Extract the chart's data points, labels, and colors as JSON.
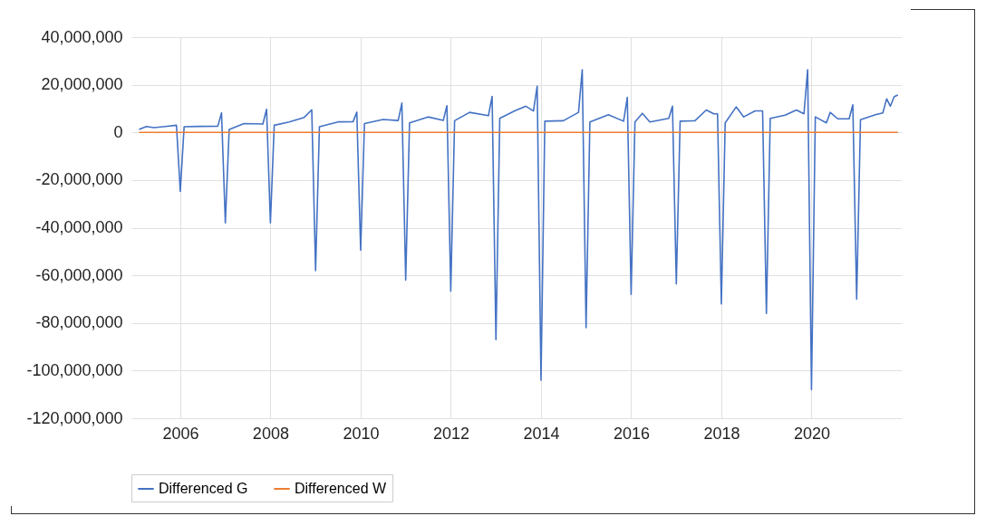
{
  "chart_data": {
    "type": "line",
    "xlim": [
      "2004-12",
      "2022-01"
    ],
    "xticks": [
      {
        "value": "2006",
        "label": "2006"
      },
      {
        "value": "2008",
        "label": "2008"
      },
      {
        "value": "2010",
        "label": "2010"
      },
      {
        "value": "2012",
        "label": "2012"
      },
      {
        "value": "2014",
        "label": "2014"
      },
      {
        "value": "2016",
        "label": "2016"
      },
      {
        "value": "2018",
        "label": "2018"
      },
      {
        "value": "2020",
        "label": "2020"
      }
    ],
    "ylim": [
      -120000000,
      40000000
    ],
    "yticks": [
      {
        "value": -120000000,
        "label": "-120,000,000"
      },
      {
        "value": -100000000,
        "label": "-100,000,000"
      },
      {
        "value": -80000000,
        "label": "-80,000,000"
      },
      {
        "value": -60000000,
        "label": "-60,000,000"
      },
      {
        "value": -40000000,
        "label": "-40,000,000"
      },
      {
        "value": -20000000,
        "label": "-20,000,000"
      },
      {
        "value": 0,
        "label": "0"
      },
      {
        "value": 20000000,
        "label": "20,000,000"
      },
      {
        "value": 40000000,
        "label": "40,000,000"
      }
    ],
    "grid": true,
    "legend": "bottom",
    "marker": "none",
    "line_style": "solid",
    "series": [
      {
        "name": "Differenced G",
        "color": "#4472c4",
        "x": [
          "2005-02",
          "2005-04",
          "2005-06",
          "2005-09",
          "2005-12",
          "2006-01",
          "2006-02",
          "2006-06",
          "2006-11",
          "2006-12",
          "2007-01",
          "2007-02",
          "2007-06",
          "2007-11",
          "2007-12",
          "2008-01",
          "2008-02",
          "2008-06",
          "2008-10",
          "2008-12",
          "2009-01",
          "2009-02",
          "2009-07",
          "2009-11",
          "2009-12",
          "2010-01",
          "2010-02",
          "2010-07",
          "2010-11",
          "2010-12",
          "2011-01",
          "2011-02",
          "2011-07",
          "2011-11",
          "2011-12",
          "2012-01",
          "2012-02",
          "2012-06",
          "2012-11",
          "2012-12",
          "2013-01",
          "2013-02",
          "2013-06",
          "2013-09",
          "2013-11",
          "2013-12",
          "2014-01",
          "2014-02",
          "2014-07",
          "2014-11",
          "2014-12",
          "2015-01",
          "2015-02",
          "2015-07",
          "2015-11",
          "2015-12",
          "2016-01",
          "2016-02",
          "2016-04",
          "2016-06",
          "2016-11",
          "2016-12",
          "2017-01",
          "2017-02",
          "2017-06",
          "2017-09",
          "2017-11",
          "2017-12",
          "2018-01",
          "2018-02",
          "2018-05",
          "2018-07",
          "2018-10",
          "2018-12",
          "2019-01",
          "2019-02",
          "2019-06",
          "2019-09",
          "2019-11",
          "2019-12",
          "2020-01",
          "2020-02",
          "2020-05",
          "2020-06",
          "2020-08",
          "2020-11",
          "2020-12",
          "2021-01",
          "2021-02",
          "2021-06",
          "2021-08",
          "2021-09",
          "2021-10",
          "2021-11",
          "2021-12"
        ],
        "values": [
          1200000,
          2500000,
          2000000,
          2500000,
          3000000,
          -24800000,
          2400000,
          2500000,
          2600000,
          8200000,
          -38000000,
          1200000,
          3700000,
          3500000,
          9700000,
          -38000000,
          3000000,
          4400000,
          6300000,
          9500000,
          -58000000,
          2400000,
          4400000,
          4500000,
          8500000,
          -49500000,
          3700000,
          5400000,
          5000000,
          12300000,
          -62000000,
          4000000,
          6500000,
          5000000,
          11200000,
          -66700000,
          4900000,
          8400000,
          7000000,
          15100000,
          -87000000,
          5900000,
          9000000,
          11000000,
          9000000,
          19400000,
          -104000000,
          4700000,
          4900000,
          8400000,
          26300000,
          -82000000,
          4400000,
          7400000,
          4700000,
          14700000,
          -68000000,
          4400000,
          8000000,
          4400000,
          5900000,
          11000000,
          -63600000,
          4700000,
          4900000,
          9400000,
          7800000,
          7800000,
          -72000000,
          4000000,
          10700000,
          6500000,
          9000000,
          9000000,
          -76000000,
          5900000,
          7200000,
          9400000,
          7800000,
          26300000,
          -108000000,
          6500000,
          4000000,
          8400000,
          5700000,
          5700000,
          11600000,
          -70000000,
          5300000,
          7400000,
          8200000,
          14100000,
          11000000,
          15000000,
          15700000
        ]
      },
      {
        "name": "Differenced W",
        "color": "#ed7d31",
        "x": [
          "2005-02",
          "2021-12"
        ],
        "values": [
          0,
          0
        ]
      }
    ]
  }
}
